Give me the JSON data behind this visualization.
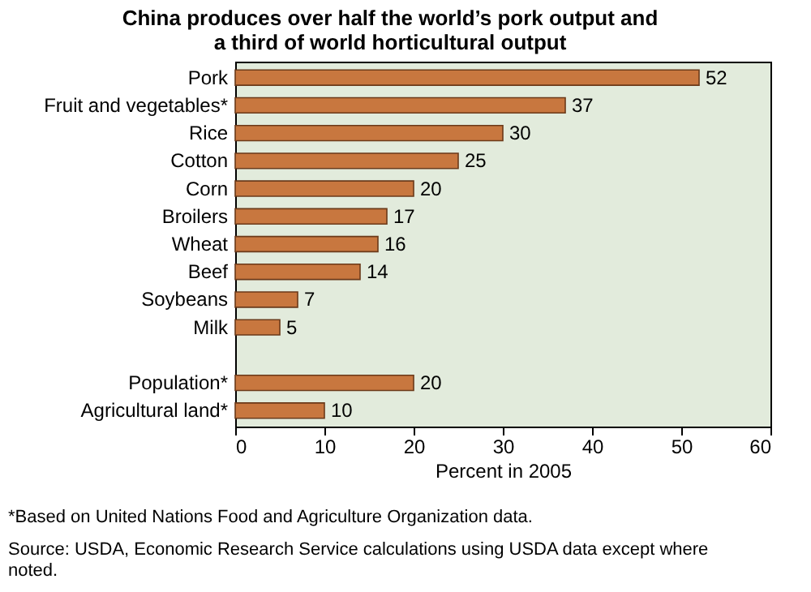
{
  "chart_data": {
    "type": "bar",
    "orientation": "horizontal",
    "title": "China produces over half the world’s pork output and a third of world horticultural output",
    "categories": [
      "Pork",
      "Fruit and vegetables*",
      "Rice",
      "Cotton",
      "Corn",
      "Broilers",
      "Wheat",
      "Beef",
      "Soybeans",
      "Milk",
      null,
      "Population*",
      "Agricultural land*"
    ],
    "values": [
      52,
      37,
      30,
      25,
      20,
      17,
      16,
      14,
      7,
      5,
      null,
      20,
      10
    ],
    "color": "#c8773f",
    "xlim": [
      0,
      60
    ],
    "xticks": [
      0,
      10,
      20,
      30,
      40,
      50,
      60
    ],
    "xlabel": "Percent in 2005",
    "grid": false,
    "data_labels": true,
    "annotations": [
      "*Based on United Nations Food and Agriculture Organization data.",
      "Source:  USDA, Economic Research Service calculations using USDA data except where noted."
    ]
  }
}
